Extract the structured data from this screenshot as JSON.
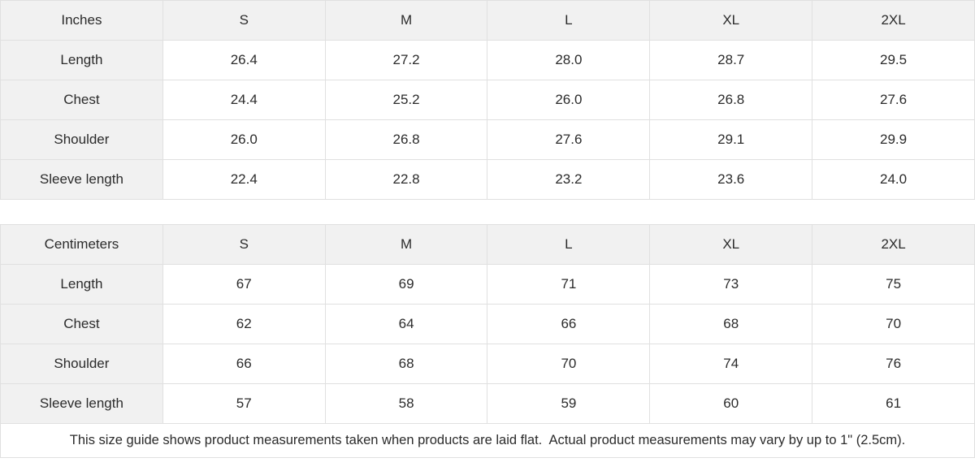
{
  "colors": {
    "header_cell_bg": "#f1f1f1",
    "data_cell_bg": "#ffffff",
    "border": "#e0e0e0",
    "text": "#2b2b2b"
  },
  "tables": [
    {
      "id": "inches",
      "unit_label": "Inches",
      "size_headers": [
        "S",
        "M",
        "L",
        "XL",
        "2XL"
      ],
      "rows": [
        {
          "label": "Length",
          "values": [
            "26.4",
            "27.2",
            "28.0",
            "28.7",
            "29.5"
          ]
        },
        {
          "label": "Chest",
          "values": [
            "24.4",
            "25.2",
            "26.0",
            "26.8",
            "27.6"
          ]
        },
        {
          "label": "Shoulder",
          "values": [
            "26.0",
            "26.8",
            "27.6",
            "29.1",
            "29.9"
          ]
        },
        {
          "label": "Sleeve length",
          "values": [
            "22.4",
            "22.8",
            "23.2",
            "23.6",
            "24.0"
          ]
        }
      ]
    },
    {
      "id": "centimeters",
      "unit_label": "Centimeters",
      "size_headers": [
        "S",
        "M",
        "L",
        "XL",
        "2XL"
      ],
      "rows": [
        {
          "label": "Length",
          "values": [
            "67",
            "69",
            "71",
            "73",
            "75"
          ]
        },
        {
          "label": "Chest",
          "values": [
            "62",
            "64",
            "66",
            "68",
            "70"
          ]
        },
        {
          "label": "Shoulder",
          "values": [
            "66",
            "68",
            "70",
            "74",
            "76"
          ]
        },
        {
          "label": "Sleeve length",
          "values": [
            "57",
            "58",
            "59",
            "60",
            "61"
          ]
        }
      ]
    }
  ],
  "footer": {
    "note": "This size guide shows product measurements taken when products are laid flat.  Actual product measurements may vary by up to 1\" (2.5cm)."
  }
}
